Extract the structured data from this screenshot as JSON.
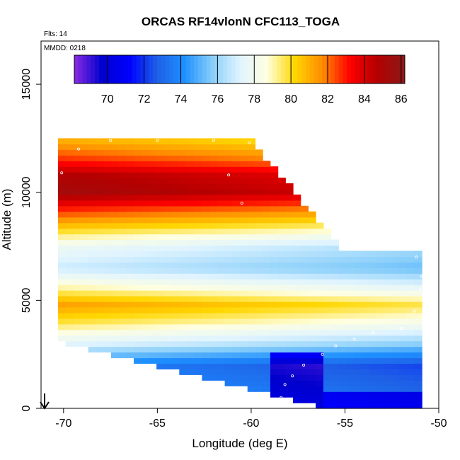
{
  "chart_data": {
    "type": "heatmap",
    "title": "ORCAS RF14vlonN CFC113_TOGA",
    "flights_note": "Flts: 14",
    "date_note": "MMDD: 0218",
    "xlabel": "Longitude (deg E)",
    "ylabel": "Altitude (m)",
    "xlim": [
      -71.2,
      -50
    ],
    "ylim": [
      0,
      17000
    ],
    "x_ticks": [
      -70,
      -65,
      -60,
      -55,
      -50
    ],
    "y_ticks": [
      0,
      5000,
      10000,
      15000
    ],
    "x_tick_labels": [
      "-70",
      "-65",
      "-60",
      "-55",
      "-50"
    ],
    "y_tick_labels": [
      "0",
      "5000",
      "10000",
      "15000"
    ],
    "colorbar": {
      "min": 68.2,
      "max": 86.2,
      "ticks": [
        70,
        72,
        74,
        76,
        78,
        80,
        82,
        84,
        86
      ],
      "tick_labels": [
        "70",
        "72",
        "74",
        "76",
        "78",
        "80",
        "82",
        "84",
        "86"
      ],
      "colors": [
        "#8a2be2",
        "#0000cd",
        "#0000ff",
        "#1e5fe6",
        "#1e90ff",
        "#87cefa",
        "#e0f4ff",
        "#ffffe0",
        "#ffd700",
        "#ff8c00",
        "#ff0000",
        "#b40000",
        "#8b1a1a"
      ]
    },
    "field_x_range": [
      -70.3,
      -50.9
    ],
    "field_y_range": [
      0,
      12500
    ],
    "profile": [
      {
        "alt": 0,
        "value": 74.0
      },
      {
        "alt": 1000,
        "value": 73.5
      },
      {
        "alt": 2000,
        "value": 73.0
      },
      {
        "alt": 3000,
        "value": 76.5
      },
      {
        "alt": 4000,
        "value": 79.0
      },
      {
        "alt": 4800,
        "value": 80.5
      },
      {
        "alt": 5500,
        "value": 78.5
      },
      {
        "alt": 6500,
        "value": 76.0
      },
      {
        "alt": 7500,
        "value": 77.0
      },
      {
        "alt": 8500,
        "value": 80.0
      },
      {
        "alt": 9200,
        "value": 82.0
      },
      {
        "alt": 10000,
        "value": 84.5
      },
      {
        "alt": 10800,
        "value": 84.0
      },
      {
        "alt": 11500,
        "value": 82.0
      },
      {
        "alt": 12500,
        "value": 80.0
      }
    ],
    "flight_track_lon": [
      -70.4,
      -70.1,
      -69.2,
      -67.5,
      -65.0,
      -62.0,
      -60.1,
      -59.0,
      -58.0,
      -57.0,
      -55.8,
      -53.5,
      -52.0,
      -51.2,
      -50.9,
      -51.0,
      -51.3,
      -52.0,
      -53.5,
      -54.5,
      -55.5,
      -56.2,
      -57.2,
      -57.8,
      -58.2,
      -58.4,
      -58.9,
      -60.2,
      -60.5,
      -61.2
    ],
    "flight_track_alt": [
      4900,
      10900,
      12000,
      12400,
      12400,
      12400,
      12300,
      12000,
      11300,
      10700,
      10000,
      9000,
      8200,
      7000,
      6100,
      5500,
      4500,
      3700,
      3500,
      3200,
      2900,
      2500,
      2000,
      1500,
      1100,
      500,
      200,
      300,
      9500,
      10800
    ]
  }
}
